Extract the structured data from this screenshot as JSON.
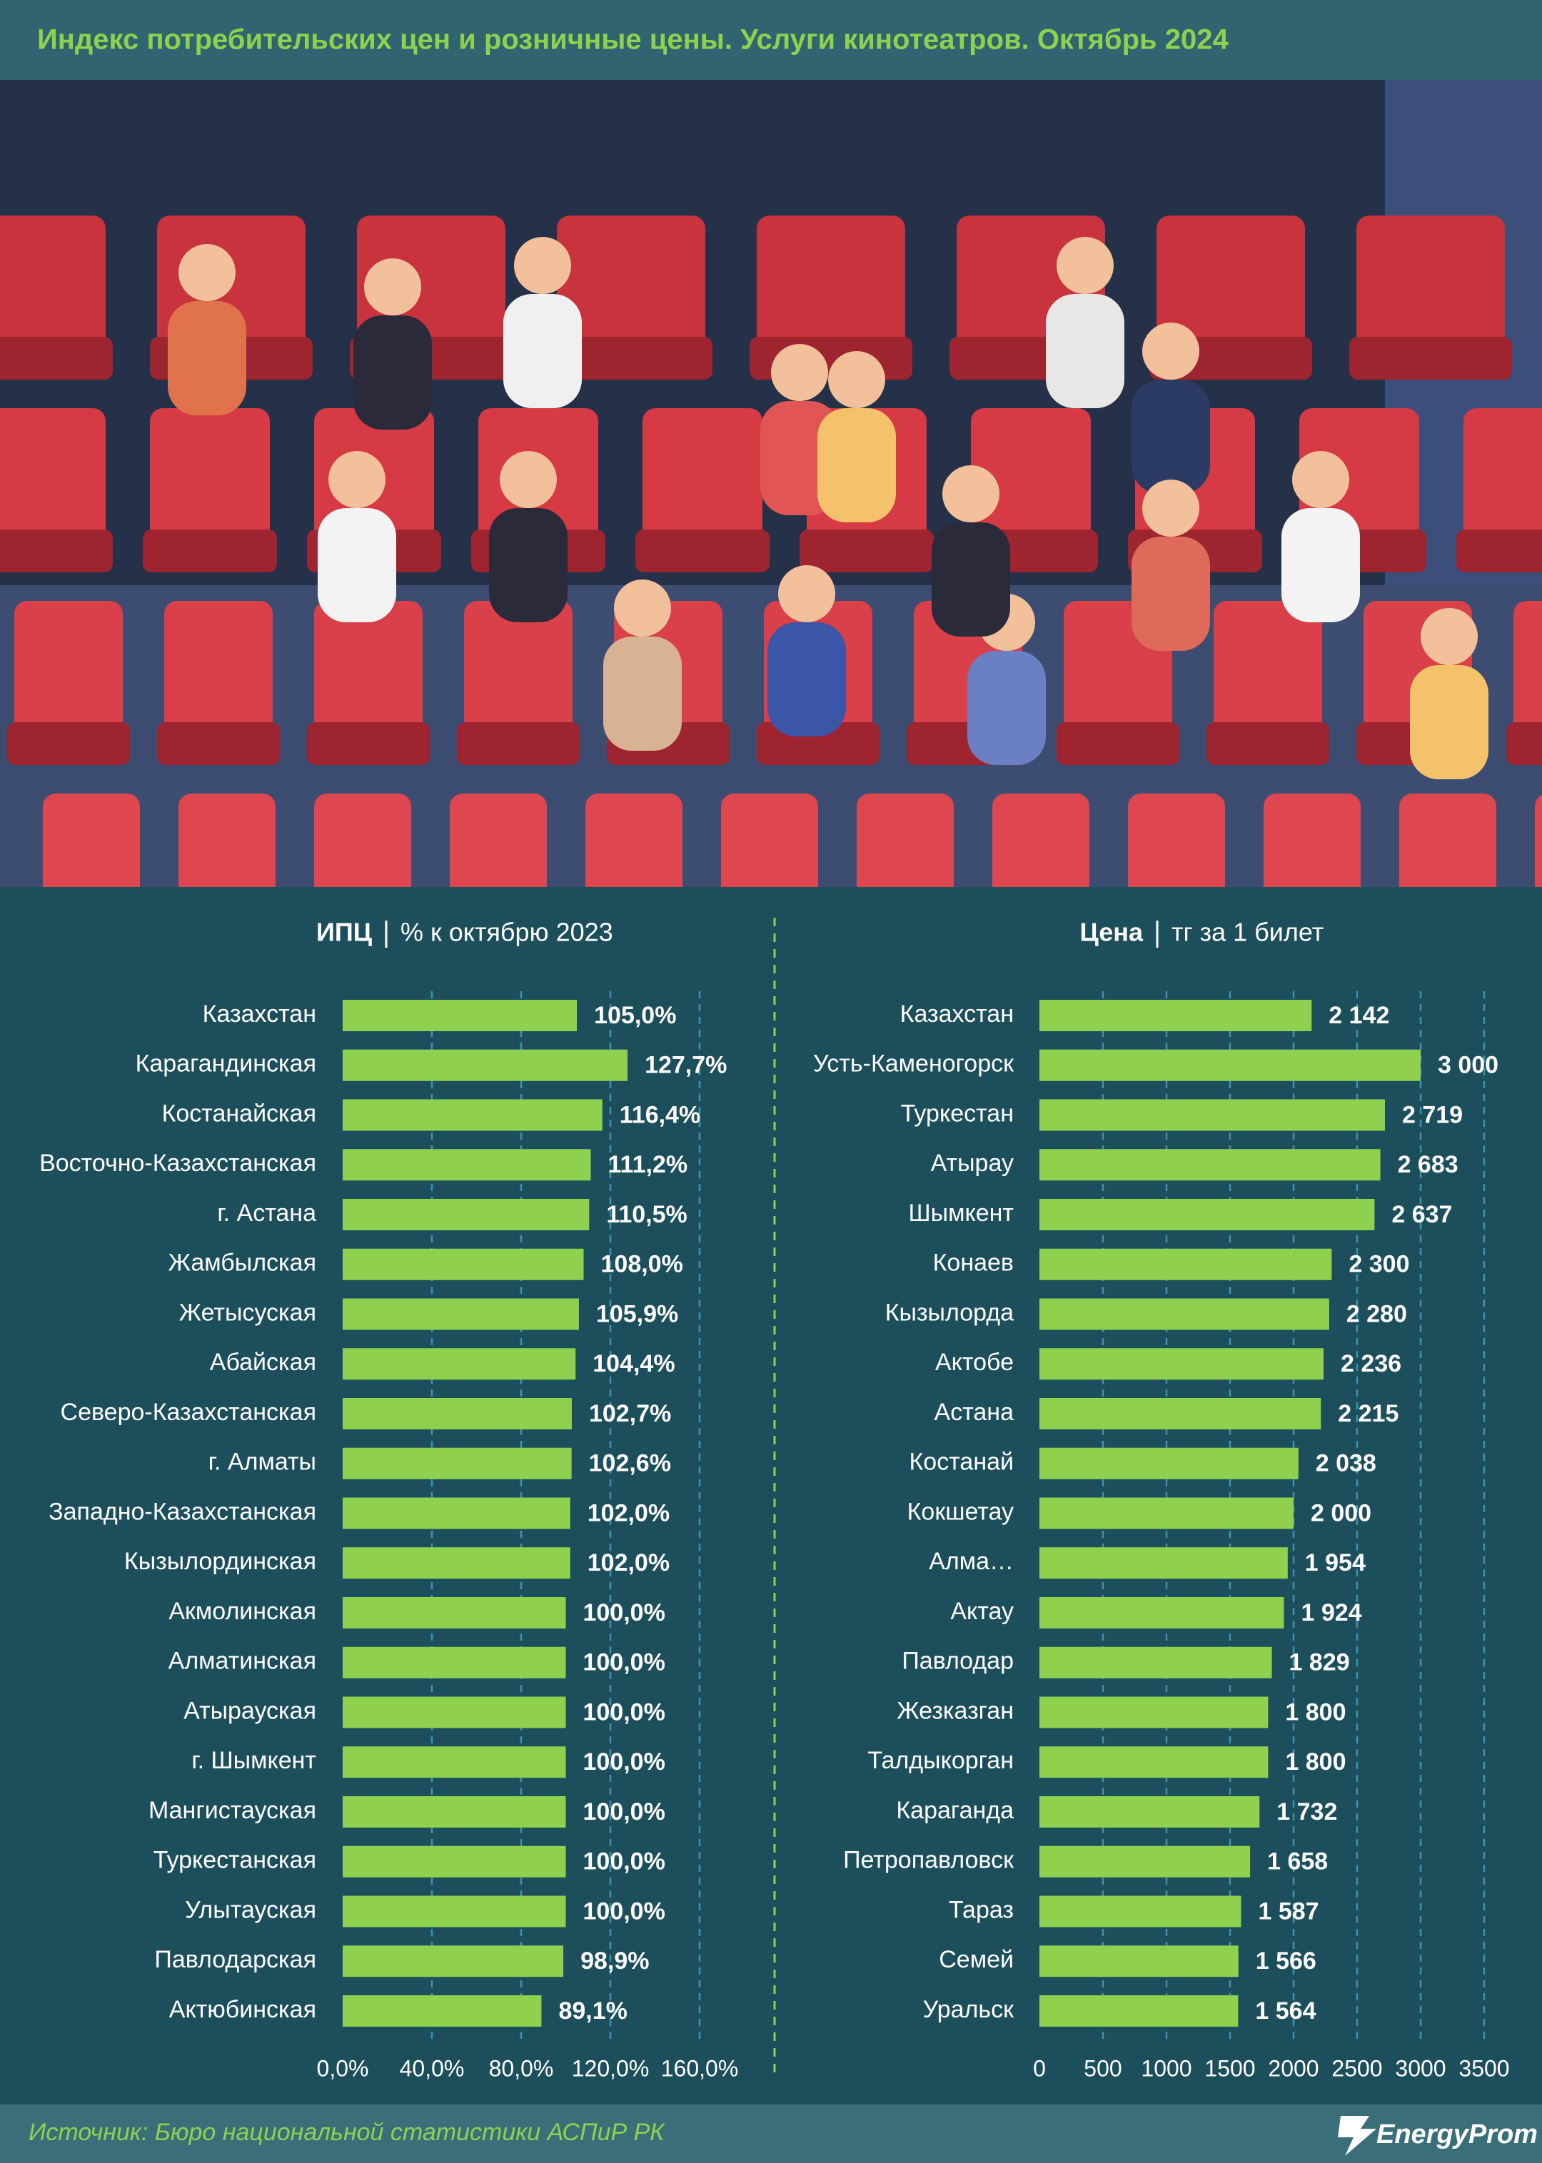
{
  "title": "Индекс потребительских цен и розничные цены. Услуги кинотеатров. Октябрь 2024",
  "source": "Источник: Бюро национальной статистики АСПиР РК",
  "logo": "EnergyProm",
  "chart_data": [
    {
      "type": "bar",
      "orientation": "horizontal",
      "title": "ИПЦ",
      "subtitle": "% к октябрю 2023",
      "color": "#8fd14f",
      "grid": true,
      "categories": [
        "Казахстан",
        "Карагандинская",
        "Костанайская",
        "Восточно-Казахстанская",
        "г. Астана",
        "Жамбылская",
        "Жетысуская",
        "Абайская",
        "Северо-Казахстанская",
        "г. Алматы",
        "Западно-Казахстанская",
        "Кызылординская",
        "Акмолинская",
        "Алматинская",
        "Атырауская",
        "г. Шымкент",
        "Мангистауская",
        "Туркестанская",
        "Улытауская",
        "Павлодарская",
        "Актюбинская"
      ],
      "values": [
        105.0,
        127.7,
        116.4,
        111.2,
        110.5,
        108.0,
        105.9,
        104.4,
        102.7,
        102.6,
        102.0,
        102.0,
        100.0,
        100.0,
        100.0,
        100.0,
        100.0,
        100.0,
        100.0,
        98.9,
        89.1
      ],
      "value_labels": [
        "105,0%",
        "127,7%",
        "116,4%",
        "111,2%",
        "110,5%",
        "108,0%",
        "105,9%",
        "104,4%",
        "102,7%",
        "102,6%",
        "102,0%",
        "102,0%",
        "100,0%",
        "100,0%",
        "100,0%",
        "100,0%",
        "100,0%",
        "100,0%",
        "100,0%",
        "98,9%",
        "89,1%"
      ],
      "xlim": [
        0,
        160
      ],
      "xticks": [
        {
          "value": 0,
          "label": "0,0%"
        },
        {
          "value": 40,
          "label": "40,0%"
        },
        {
          "value": 80,
          "label": "80,0%"
        },
        {
          "value": 120,
          "label": "120,0%"
        },
        {
          "value": 160,
          "label": "160,0%"
        }
      ]
    },
    {
      "type": "bar",
      "orientation": "horizontal",
      "title": "Цена",
      "subtitle": "тг за 1 билет",
      "color": "#8fd14f",
      "grid": true,
      "categories": [
        "Казахстан",
        "Усть-Каменогорск",
        "Туркестан",
        "Атырау",
        "Шымкент",
        "Конаев",
        "Кызылорда",
        "Актобе",
        "Астана",
        "Костанай",
        "Кокшетау",
        "Алма…",
        "Актау",
        "Павлодар",
        "Жезказган",
        "Талдыкорган",
        "Караганда",
        "Петропавловск",
        "Тараз",
        "Семей",
        "Уральск"
      ],
      "values": [
        2142,
        3000,
        2719,
        2683,
        2637,
        2300,
        2280,
        2236,
        2215,
        2038,
        2000,
        1954,
        1924,
        1829,
        1800,
        1800,
        1732,
        1658,
        1587,
        1566,
        1564
      ],
      "value_labels": [
        "2 142",
        "3 000",
        "2 719",
        "2 683",
        "2 637",
        "2 300",
        "2 280",
        "2 236",
        "2 215",
        "2 038",
        "2 000",
        "1 954",
        "1 924",
        "1 829",
        "1 800",
        "1 800",
        "1 732",
        "1 658",
        "1 587",
        "1 566",
        "1 564"
      ],
      "xlim": [
        0,
        3500
      ],
      "xticks": [
        0,
        500,
        1000,
        1500,
        2000,
        2500,
        3000,
        3500
      ]
    }
  ]
}
